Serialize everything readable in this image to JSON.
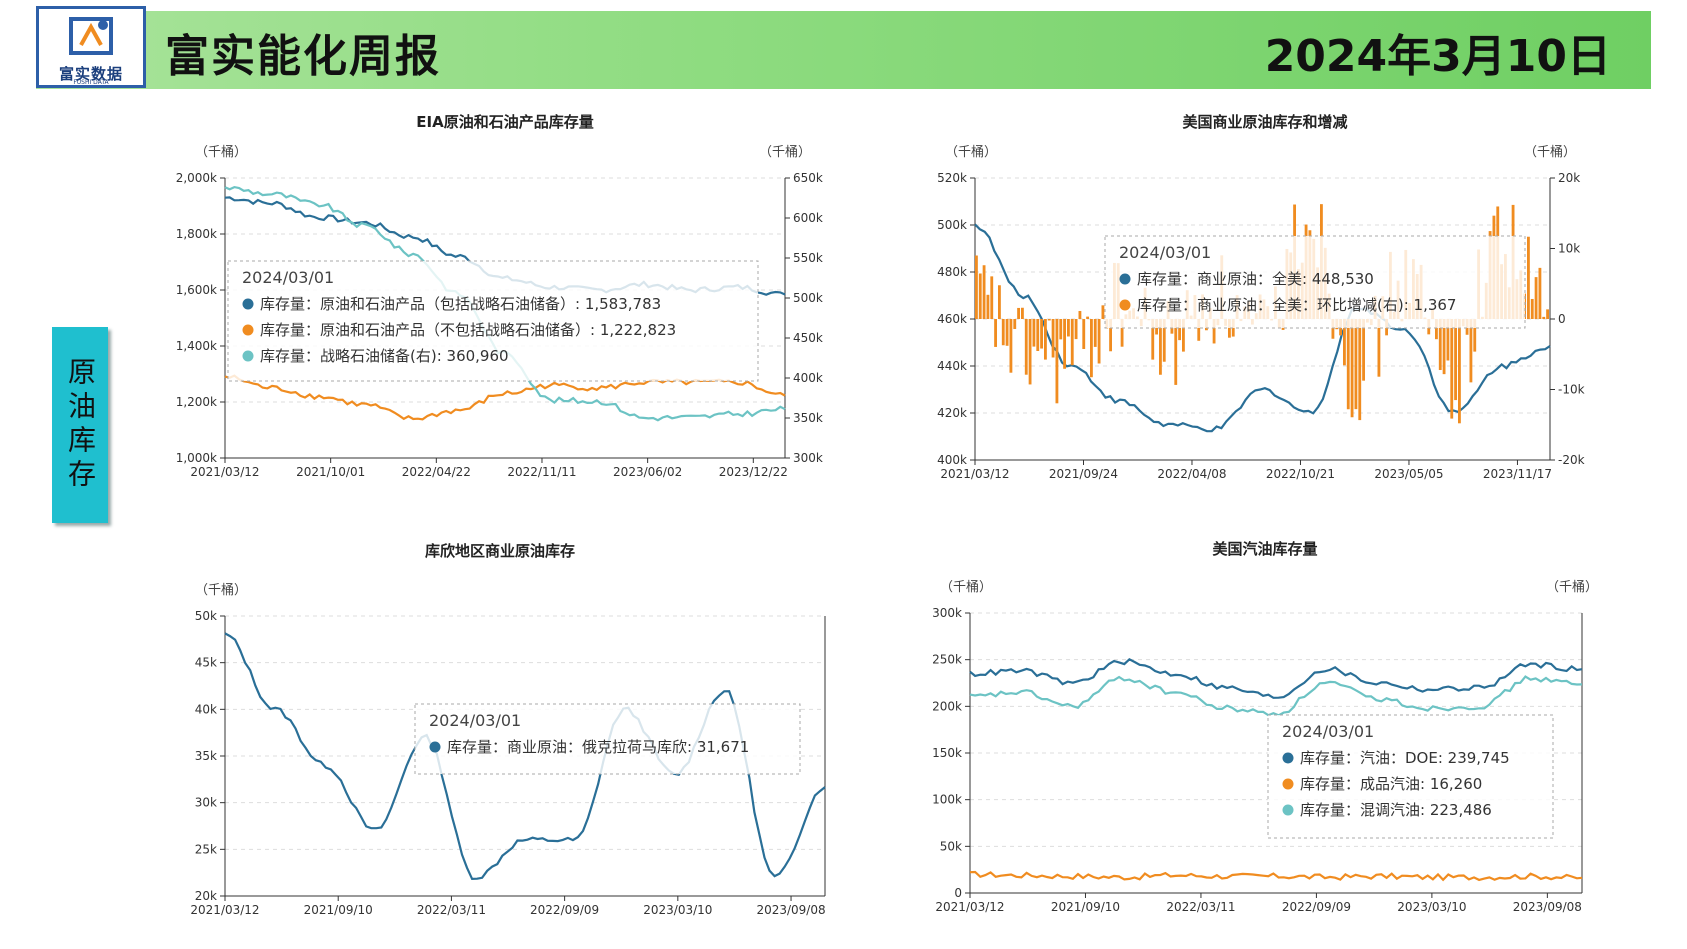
{
  "header": {
    "title": "富实能化周报",
    "date": "2024年3月10日",
    "logo_text": "富实数据",
    "logo_sub": "FUSHI DATA"
  },
  "section_label": "原油库存",
  "colors": {
    "blue": "#2a6f97",
    "orange": "#f08c20",
    "teal": "#6cc3c4",
    "header_green": "#7fd870",
    "section_cyan": "#1fbfcf"
  },
  "chart_data": [
    {
      "type": "line",
      "title": "EIA原油和石油产品库存量",
      "ylabel_left": "（千桶）",
      "ylabel_right": "（千桶）",
      "x_ticks": [
        "2021/03/12",
        "2021/10/01",
        "2022/04/22",
        "2022/11/11",
        "2023/06/02",
        "2023/12/22"
      ],
      "y_ticks_left": [
        "1,000k",
        "1,200k",
        "1,400k",
        "1,600k",
        "1,800k",
        "2,000k"
      ],
      "y_ticks_right": [
        "300k",
        "350k",
        "400k",
        "450k",
        "500k",
        "550k",
        "600k",
        "650k"
      ],
      "ylim_left": [
        1000000,
        2000000
      ],
      "ylim_right": [
        300000,
        650000
      ],
      "x": [
        "2021/03/12",
        "2021/06",
        "2021/09",
        "2021/12",
        "2022/03",
        "2022/06",
        "2022/09",
        "2022/12",
        "2023/03",
        "2023/06",
        "2023/09",
        "2023/12",
        "2024/03/01"
      ],
      "series": [
        {
          "name": "库存量：原油和石油产品（包括战略石油储备）",
          "axis": "left",
          "values": [
            1930000,
            1910000,
            1860000,
            1840000,
            1790000,
            1720000,
            1640000,
            1610000,
            1600000,
            1620000,
            1600000,
            1610000,
            1583783
          ]
        },
        {
          "name": "库存量：原油和石油产品（不包括战略石油储备）",
          "axis": "left",
          "values": [
            1290000,
            1250000,
            1220000,
            1190000,
            1140000,
            1170000,
            1230000,
            1260000,
            1250000,
            1270000,
            1270000,
            1270000,
            1222823
          ]
        },
        {
          "name": "库存量：战略石油储备(右)",
          "axis": "right",
          "values": [
            638000,
            630000,
            617000,
            590000,
            555000,
            505000,
            430000,
            372000,
            371000,
            350000,
            351000,
            355000,
            360960
          ]
        }
      ],
      "tooltip": {
        "date": "2024/03/01",
        "items": [
          "库存量：原油和石油产品（包括战略石油储备）: 1,583,783",
          "库存量：原油和石油产品（不包括战略石油储备）: 1,222,823",
          "库存量：战略石油储备(右): 360,960"
        ]
      }
    },
    {
      "type": "line",
      "title": "美国商业原油库存和增减",
      "ylabel_left": "（千桶）",
      "ylabel_right": "（千桶）",
      "x_ticks": [
        "2021/03/12",
        "2021/09/24",
        "2022/04/08",
        "2022/10/21",
        "2023/05/05",
        "2023/11/17"
      ],
      "y_ticks_left": [
        "400k",
        "420k",
        "440k",
        "460k",
        "480k",
        "500k",
        "520k"
      ],
      "y_ticks_right": [
        "-20k",
        "-10k",
        "0",
        "10k",
        "20k"
      ],
      "ylim_left": [
        400000,
        520000
      ],
      "ylim_right": [
        -20000,
        20000
      ],
      "x": [
        "2021/03",
        "2021/06",
        "2021/09",
        "2021/12",
        "2022/03",
        "2022/06",
        "2022/09",
        "2022/12",
        "2023/03",
        "2023/06",
        "2023/09",
        "2023/12",
        "2024/03/01"
      ],
      "series": [
        {
          "name": "库存量：商业原油：全美",
          "axis": "left",
          "values": [
            500000,
            470000,
            440000,
            425000,
            415000,
            413000,
            430000,
            420000,
            465000,
            455000,
            420000,
            440000,
            448530
          ]
        },
        {
          "name": "库存量：商业原油：全美：环比增减(右)",
          "axis": "right",
          "type": "bar",
          "values": [
            3000,
            -5000,
            -6000,
            2000,
            -4000,
            3000,
            -3000,
            15000,
            -8000,
            6000,
            -9000,
            12000,
            1367
          ]
        }
      ],
      "tooltip": {
        "date": "2024/03/01",
        "items": [
          "库存量：商业原油：全美: 448,530",
          "库存量：商业原油：全美：环比增减(右): 1,367"
        ]
      }
    },
    {
      "type": "line",
      "title": "库欣地区商业原油库存",
      "ylabel_left": "（千桶）",
      "x_ticks": [
        "2021/03/12",
        "2021/09/10",
        "2022/03/11",
        "2022/09/09",
        "2023/03/10",
        "2023/09/08"
      ],
      "y_ticks_left": [
        "20k",
        "25k",
        "30k",
        "35k",
        "40k",
        "45k",
        "50k"
      ],
      "ylim_left": [
        20000,
        50000
      ],
      "x": [
        "2021/03",
        "2021/06",
        "2021/09",
        "2021/12",
        "2022/03",
        "2022/06",
        "2022/09",
        "2022/12",
        "2023/03",
        "2023/06",
        "2023/09",
        "2023/12",
        "2024/03/01"
      ],
      "series": [
        {
          "name": "库存量：商业原油：俄克拉荷马库欣",
          "axis": "left",
          "values": [
            48000,
            40000,
            34000,
            27000,
            37000,
            22000,
            26000,
            26000,
            40000,
            33000,
            42000,
            22000,
            31671
          ]
        }
      ],
      "tooltip": {
        "date": "2024/03/01",
        "items": [
          "库存量：商业原油：俄克拉荷马库欣: 31,671"
        ]
      }
    },
    {
      "type": "line",
      "title": "美国汽油库存量",
      "ylabel_left": "（千桶）",
      "ylabel_right": "（千桶）",
      "x_ticks": [
        "2021/03/12",
        "2021/09/10",
        "2022/03/11",
        "2022/09/09",
        "2023/03/10",
        "2023/09/08"
      ],
      "y_ticks_left": [
        "0",
        "50k",
        "100k",
        "150k",
        "200k",
        "250k",
        "300k"
      ],
      "ylim_left": [
        0,
        300000
      ],
      "x": [
        "2021/03",
        "2021/06",
        "2021/09",
        "2021/12",
        "2022/03",
        "2022/06",
        "2022/09",
        "2022/12",
        "2023/03",
        "2023/06",
        "2023/09",
        "2023/12",
        "2024/03/01"
      ],
      "series": [
        {
          "name": "库存量：汽油：DOE",
          "axis": "left",
          "values": [
            235000,
            238000,
            225000,
            248000,
            235000,
            220000,
            210000,
            240000,
            225000,
            218000,
            220000,
            245000,
            239745
          ]
        },
        {
          "name": "库存量：成品汽油",
          "axis": "left",
          "values": [
            20000,
            19000,
            18000,
            17000,
            19000,
            18000,
            18000,
            17000,
            18000,
            17000,
            17000,
            18000,
            16260
          ]
        },
        {
          "name": "库存量：混调汽油",
          "axis": "left",
          "values": [
            210000,
            215000,
            200000,
            230000,
            215000,
            198000,
            192000,
            225000,
            208000,
            198000,
            200000,
            230000,
            223486
          ]
        }
      ],
      "tooltip": {
        "date": "2024/03/01",
        "items": [
          "库存量：汽油：DOE: 239,745",
          "库存量：成品汽油: 16,260",
          "库存量：混调汽油: 223,486"
        ]
      }
    }
  ]
}
